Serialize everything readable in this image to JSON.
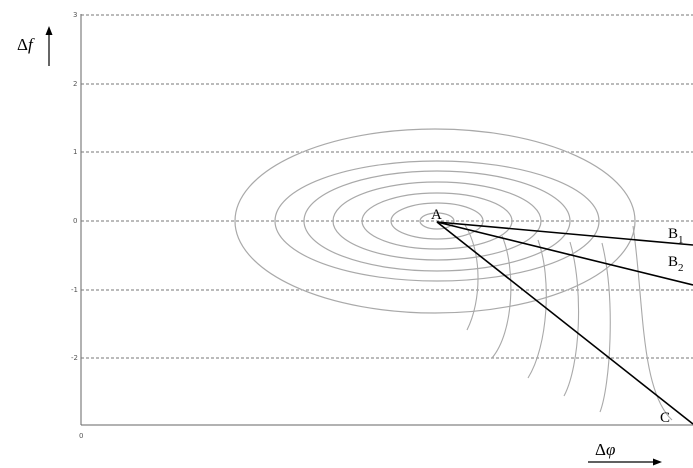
{
  "diagram": {
    "y_axis_title_symbol": "Δ",
    "y_axis_title_var": "f",
    "x_axis_title_symbol": "Δ",
    "x_axis_title_var": "φ",
    "y_ticks": [
      "3",
      "2",
      "1",
      "0",
      "-1",
      "-2"
    ],
    "x_tick": "0",
    "points": [
      {
        "id": "A",
        "label": "A",
        "sub": ""
      },
      {
        "id": "B1",
        "label": "B",
        "sub": "1"
      },
      {
        "id": "B2",
        "label": "B",
        "sub": "2"
      },
      {
        "id": "C",
        "label": "C",
        "sub": ""
      }
    ],
    "ellipse_count": 7,
    "colors": {
      "ellipse": "#a9a9a9",
      "grid": "#777777",
      "ray": "#000000"
    }
  }
}
